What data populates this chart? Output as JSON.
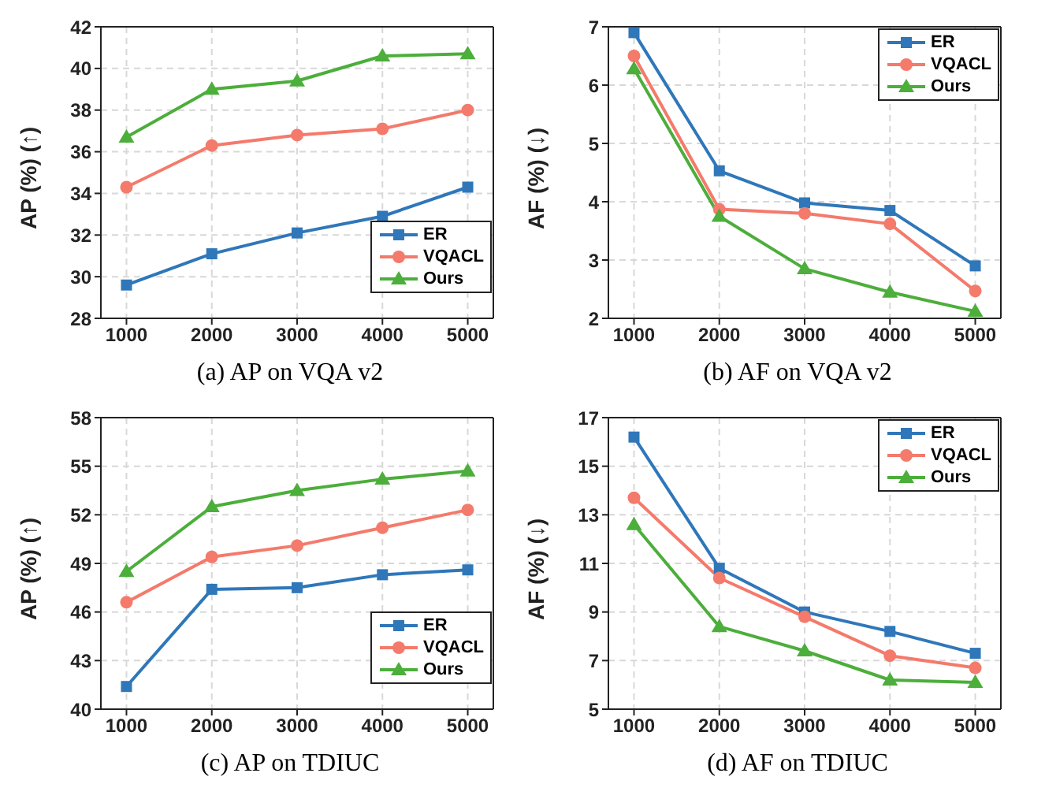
{
  "chart_data": [
    {
      "type": "line",
      "xlabel": "(a) AP on VQA v2",
      "ylabel": "AP (%) (↑)",
      "x": [
        1000,
        2000,
        3000,
        4000,
        5000
      ],
      "xlim": [
        700,
        5300
      ],
      "xticks": [
        1000,
        2000,
        3000,
        4000,
        5000
      ],
      "ylim": [
        28,
        42
      ],
      "yticks": [
        28,
        30,
        32,
        34,
        36,
        38,
        40,
        42
      ],
      "grid": true,
      "legend": "bottom right",
      "line_style": "solid",
      "series": [
        {
          "name": "ER",
          "color": "#2f77b9",
          "marker": "square",
          "values": [
            29.6,
            31.1,
            32.1,
            32.9,
            34.3
          ]
        },
        {
          "name": "VQACL",
          "color": "#f47a6b",
          "marker": "circle",
          "values": [
            34.3,
            36.3,
            36.8,
            37.1,
            38.0
          ]
        },
        {
          "name": "Ours",
          "color": "#4cae3b",
          "marker": "triangle",
          "values": [
            36.7,
            39.0,
            39.4,
            40.6,
            40.7
          ]
        }
      ]
    },
    {
      "type": "line",
      "xlabel": "(b) AF on VQA v2",
      "ylabel": "AF (%) (↓)",
      "x": [
        1000,
        2000,
        3000,
        4000,
        5000
      ],
      "xlim": [
        700,
        5300
      ],
      "xticks": [
        1000,
        2000,
        3000,
        4000,
        5000
      ],
      "ylim": [
        2,
        7
      ],
      "yticks": [
        2,
        3,
        4,
        5,
        6,
        7
      ],
      "grid": true,
      "legend": "top right",
      "line_style": "solid",
      "series": [
        {
          "name": "ER",
          "color": "#2f77b9",
          "marker": "square",
          "values": [
            6.9,
            4.53,
            3.98,
            3.85,
            2.9
          ]
        },
        {
          "name": "VQACL",
          "color": "#f47a6b",
          "marker": "circle",
          "values": [
            6.5,
            3.87,
            3.8,
            3.62,
            2.47
          ]
        },
        {
          "name": "Ours",
          "color": "#4cae3b",
          "marker": "triangle",
          "values": [
            6.28,
            3.75,
            2.85,
            2.45,
            2.12
          ]
        }
      ]
    },
    {
      "type": "line",
      "xlabel": "(c) AP on TDIUC",
      "ylabel": "AP (%) (↑)",
      "x": [
        1000,
        2000,
        3000,
        4000,
        5000
      ],
      "xlim": [
        700,
        5300
      ],
      "xticks": [
        1000,
        2000,
        3000,
        4000,
        5000
      ],
      "ylim": [
        40,
        58
      ],
      "yticks": [
        40,
        43,
        46,
        49,
        52,
        55,
        58
      ],
      "grid": true,
      "legend": "bottom right",
      "line_style": "solid",
      "series": [
        {
          "name": "ER",
          "color": "#2f77b9",
          "marker": "square",
          "values": [
            41.4,
            47.4,
            47.5,
            48.3,
            48.6
          ]
        },
        {
          "name": "VQACL",
          "color": "#f47a6b",
          "marker": "circle",
          "values": [
            46.6,
            49.4,
            50.1,
            51.2,
            52.3
          ]
        },
        {
          "name": "Ours",
          "color": "#4cae3b",
          "marker": "triangle",
          "values": [
            48.5,
            52.5,
            53.5,
            54.2,
            54.7
          ]
        }
      ]
    },
    {
      "type": "line",
      "xlabel": "(d) AF on TDIUC",
      "ylabel": "AF (%) (↓)",
      "x": [
        1000,
        2000,
        3000,
        4000,
        5000
      ],
      "xlim": [
        700,
        5300
      ],
      "xticks": [
        1000,
        2000,
        3000,
        4000,
        5000
      ],
      "ylim": [
        5,
        17
      ],
      "yticks": [
        5,
        7,
        9,
        11,
        13,
        15,
        17
      ],
      "grid": true,
      "legend": "top right",
      "line_style": "solid",
      "series": [
        {
          "name": "ER",
          "color": "#2f77b9",
          "marker": "square",
          "values": [
            16.2,
            10.8,
            9.0,
            8.2,
            7.3
          ]
        },
        {
          "name": "VQACL",
          "color": "#f47a6b",
          "marker": "circle",
          "values": [
            13.7,
            10.4,
            8.8,
            7.2,
            6.7
          ]
        },
        {
          "name": "Ours",
          "color": "#4cae3b",
          "marker": "triangle",
          "values": [
            12.6,
            8.4,
            7.4,
            6.2,
            6.1
          ]
        }
      ]
    }
  ]
}
